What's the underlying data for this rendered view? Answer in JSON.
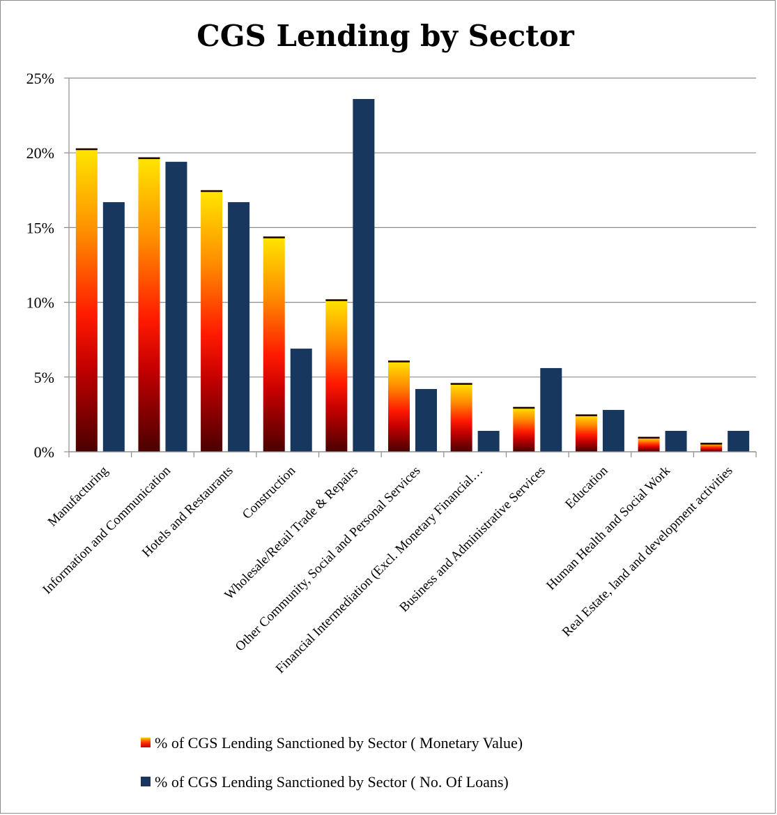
{
  "chart_data": {
    "type": "bar",
    "title": "CGS Lending by Sector",
    "xlabel": "",
    "ylabel": "",
    "ylim": [
      0,
      25
    ],
    "yticks": [
      "0%",
      "5%",
      "10%",
      "15%",
      "20%",
      "25%"
    ],
    "grid": true,
    "legend_position": "bottom",
    "categories": [
      "Manufacturing",
      "Information and Communication",
      "Hotels and Restaurants",
      "Construction",
      "Wholesale/Retail Trade & Repairs",
      "Other Community, Social and Personal Services",
      "Financial Intermediation (Excl. Monetary Financial…",
      "Business and Administrative Services",
      "Education",
      "Human Health and Social Work",
      "Real Estate, land and development activities"
    ],
    "series": [
      {
        "name": "% of CGS Lending Sanctioned by Sector ( Monetary Value)",
        "values": [
          20.3,
          19.7,
          17.5,
          14.4,
          10.2,
          6.1,
          4.6,
          3.0,
          2.5,
          1.0,
          0.6
        ],
        "color": "#ff1a00"
      },
      {
        "name": "% of CGS Lending Sanctioned by Sector ( No. Of Loans)",
        "values": [
          16.7,
          19.4,
          16.7,
          6.9,
          23.6,
          4.2,
          1.4,
          5.6,
          2.8,
          1.4,
          1.4
        ],
        "color": "#17375e"
      }
    ]
  }
}
